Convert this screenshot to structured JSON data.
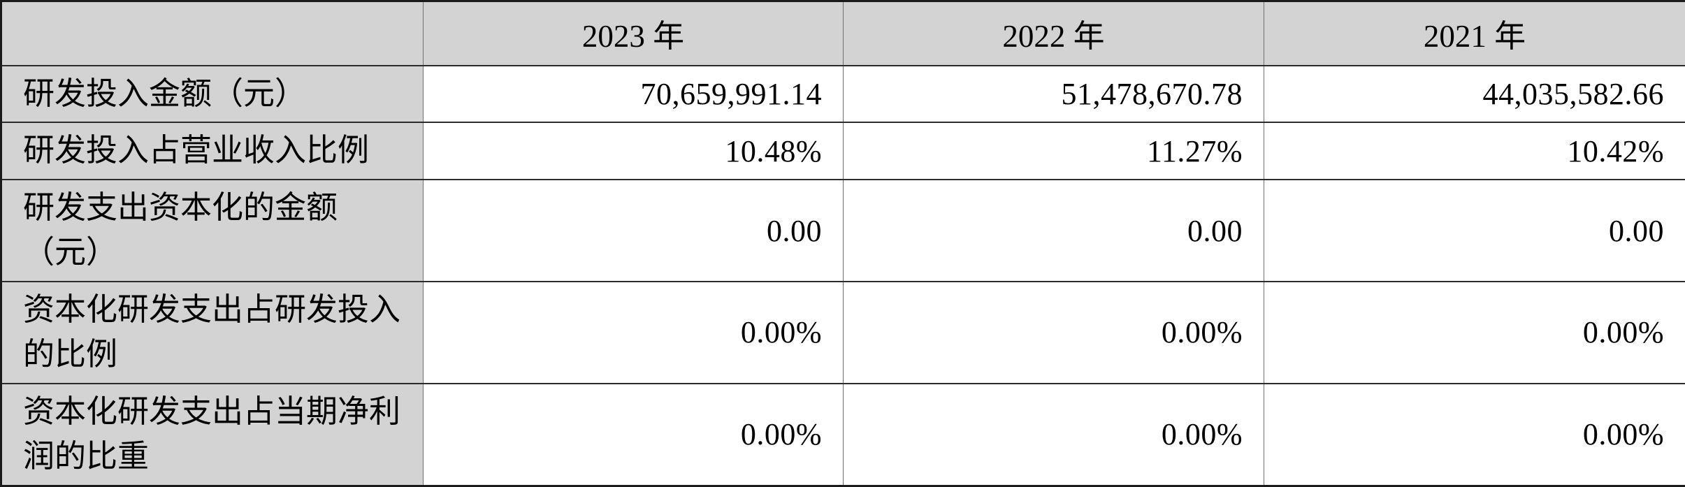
{
  "table": {
    "title_hint": "研发投入表",
    "header": {
      "corner": "",
      "years": [
        "2023 年",
        "2022 年",
        "2021 年"
      ]
    },
    "rows": [
      {
        "label": "研发投入金额（元）",
        "values": [
          "70,659,991.14",
          "51,478,670.78",
          "44,035,582.66"
        ]
      },
      {
        "label": "研发投入占营业收入比例",
        "values": [
          "10.48%",
          "11.27%",
          "10.42%"
        ]
      },
      {
        "label": "研发支出资本化的金额\n（元）",
        "values": [
          "0.00",
          "0.00",
          "0.00"
        ]
      },
      {
        "label": "资本化研发支出占研发投入\n的比例",
        "values": [
          "0.00%",
          "0.00%",
          "0.00%"
        ]
      },
      {
        "label": "资本化研发支出占当期净利\n润的比重",
        "values": [
          "0.00%",
          "0.00%",
          "0.00%"
        ]
      }
    ],
    "colors": {
      "header_bg": "#d3d3d3",
      "label_bg": "#d3d3d3",
      "value_bg": "#ffffff",
      "border_dark": "#2b2b2b",
      "border_light": "#6f6f6f",
      "text": "#000000"
    }
  }
}
